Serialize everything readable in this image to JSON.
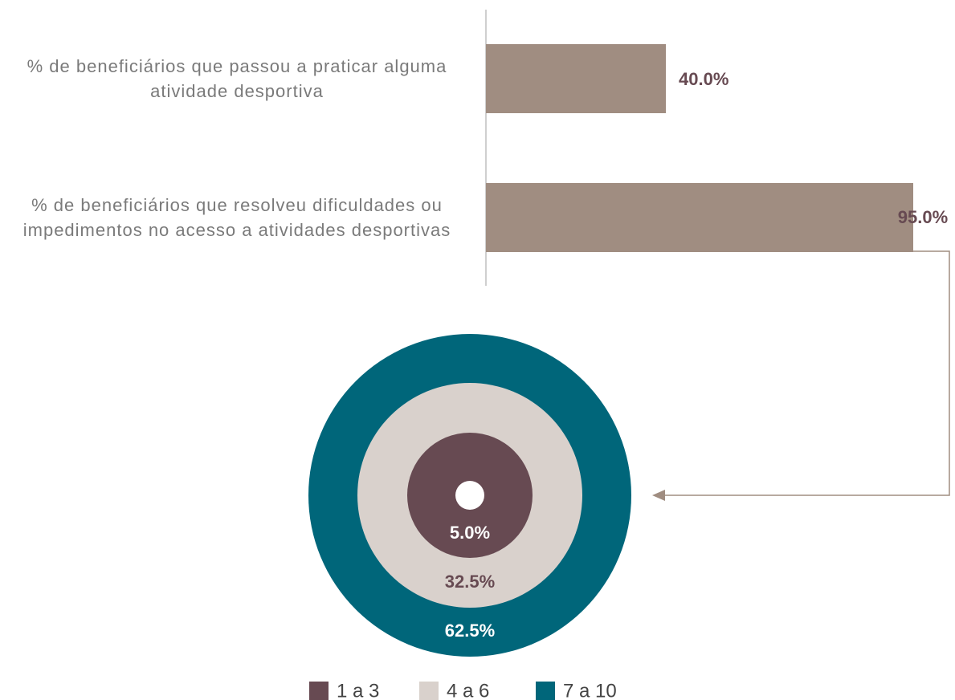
{
  "chart_data": [
    {
      "type": "bar",
      "orientation": "horizontal",
      "categories": [
        "% de beneficiários que passou a praticar alguma atividade desportiva",
        "% de beneficiários que resolveu dificuldades ou impedimentos no acesso a atividades desportivas"
      ],
      "values": [
        40.0,
        95.0
      ],
      "value_labels": [
        "40.0%",
        "95.0%"
      ],
      "color": "#a08d81"
    },
    {
      "type": "concentric",
      "categories": [
        "1 a 3",
        "4 a 6",
        "7 a 10"
      ],
      "values": [
        5.0,
        32.5,
        62.5
      ],
      "value_labels": [
        "5.0%",
        "32.5%",
        "62.5%"
      ],
      "colors": [
        "#674a52",
        "#d9d1cc",
        "#00667a"
      ],
      "label_colors": [
        "#ffffff",
        "#674a52",
        "#ffffff"
      ]
    }
  ]
}
